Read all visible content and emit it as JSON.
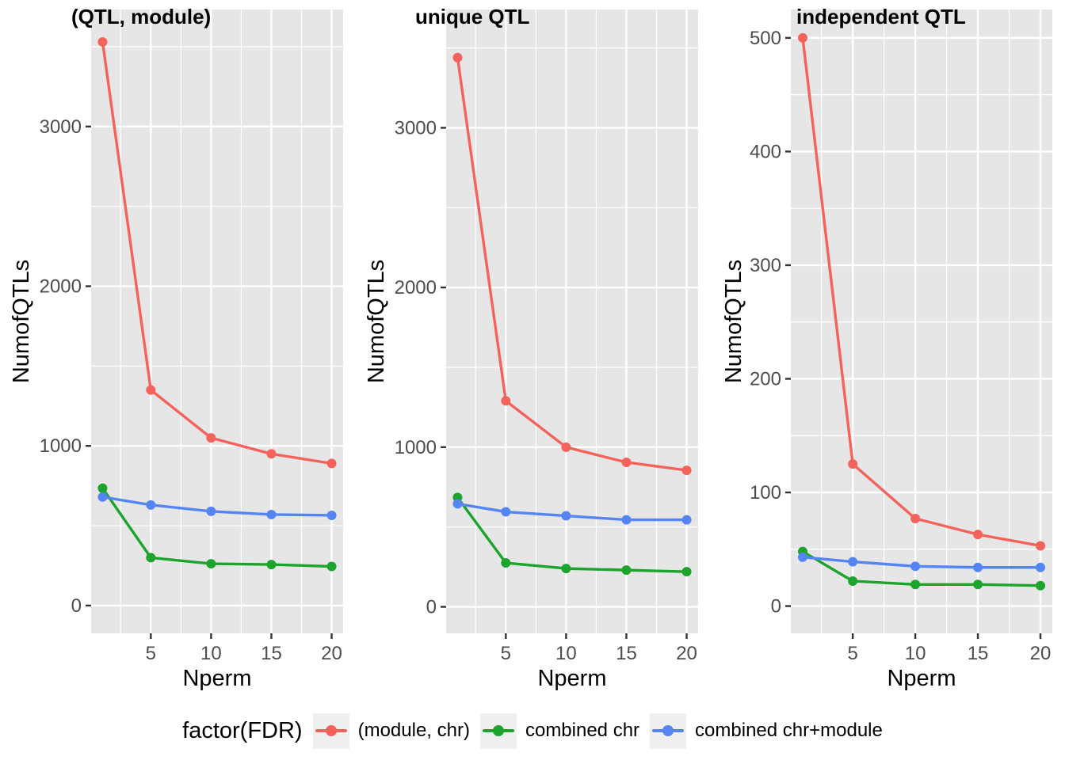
{
  "colors": {
    "background": "#FFFFFF",
    "panel_background": "#E6E6E6",
    "grid": "#FFFFFF",
    "tick_label": "#4D4D4D",
    "tick_mark": "#333333",
    "series_red": "#F4635B",
    "series_green": "#1CA42C",
    "series_blue": "#5585F2"
  },
  "chart_data": [
    {
      "type": "line",
      "title": "(QTL, module)",
      "xlabel": "Nperm",
      "ylabel": "NumofQTLs",
      "x": [
        1,
        5,
        10,
        15,
        20
      ],
      "x_ticks": [
        5,
        10,
        15,
        20
      ],
      "x_minor": [
        2.5,
        7.5,
        12.5,
        17.5
      ],
      "xlim": [
        0.05,
        20.95
      ],
      "y_ticks": [
        0,
        1000,
        2000,
        3000
      ],
      "y_minor": [
        500,
        1500,
        2500,
        3500
      ],
      "ylim": [
        -174,
        3733
      ],
      "grid": true,
      "legend_position": "bottom",
      "series": [
        {
          "name": "(module, chr)",
          "color": "#F4635B",
          "values": [
            3530,
            1350,
            1050,
            950,
            890
          ]
        },
        {
          "name": "combined chr",
          "color": "#1CA42C",
          "values": [
            735,
            300,
            262,
            257,
            245
          ]
        },
        {
          "name": "combined chr+module",
          "color": "#5585F2",
          "values": [
            680,
            630,
            590,
            570,
            565
          ]
        }
      ]
    },
    {
      "type": "line",
      "title": "unique QTL",
      "xlabel": "Nperm",
      "ylabel": "NumofQTLs",
      "x": [
        1,
        5,
        10,
        15,
        20
      ],
      "x_ticks": [
        5,
        10,
        15,
        20
      ],
      "x_minor": [
        2.5,
        7.5,
        12.5,
        17.5
      ],
      "xlim": [
        0.05,
        20.95
      ],
      "y_ticks": [
        0,
        1000,
        2000,
        3000
      ],
      "y_minor": [
        500,
        1500,
        2500,
        3500
      ],
      "ylim": [
        -166,
        3741
      ],
      "grid": true,
      "legend_position": "bottom",
      "series": [
        {
          "name": "(module, chr)",
          "color": "#F4635B",
          "values": [
            3440,
            1290,
            1000,
            905,
            855
          ]
        },
        {
          "name": "combined chr",
          "color": "#1CA42C",
          "values": [
            685,
            275,
            240,
            230,
            220
          ]
        },
        {
          "name": "combined chr+module",
          "color": "#5585F2",
          "values": [
            645,
            595,
            570,
            545,
            545
          ]
        }
      ]
    },
    {
      "type": "line",
      "title": "independent QTL",
      "xlabel": "Nperm",
      "ylabel": "NumofQTLs",
      "x": [
        1,
        5,
        10,
        15,
        20
      ],
      "x_ticks": [
        5,
        10,
        15,
        20
      ],
      "x_minor": [
        2.5,
        7.5,
        12.5,
        17.5
      ],
      "xlim": [
        0.05,
        20.95
      ],
      "y_ticks": [
        0,
        100,
        200,
        300,
        400,
        500
      ],
      "y_minor": [
        50,
        150,
        250,
        350,
        450
      ],
      "ylim": [
        -24,
        525
      ],
      "grid": true,
      "legend_position": "bottom",
      "series": [
        {
          "name": "(module, chr)",
          "color": "#F4635B",
          "values": [
            500,
            125,
            77,
            63,
            53
          ]
        },
        {
          "name": "combined chr",
          "color": "#1CA42C",
          "values": [
            48,
            22,
            19,
            19,
            18
          ]
        },
        {
          "name": "combined chr+module",
          "color": "#5585F2",
          "values": [
            43,
            39,
            35,
            34,
            34
          ]
        }
      ]
    }
  ],
  "legend": {
    "title": "factor(FDR)",
    "entries": [
      {
        "label": "(module, chr)",
        "color": "#F4635B"
      },
      {
        "label": "combined chr",
        "color": "#1CA42C"
      },
      {
        "label": "combined chr+module",
        "color": "#5585F2"
      }
    ]
  }
}
